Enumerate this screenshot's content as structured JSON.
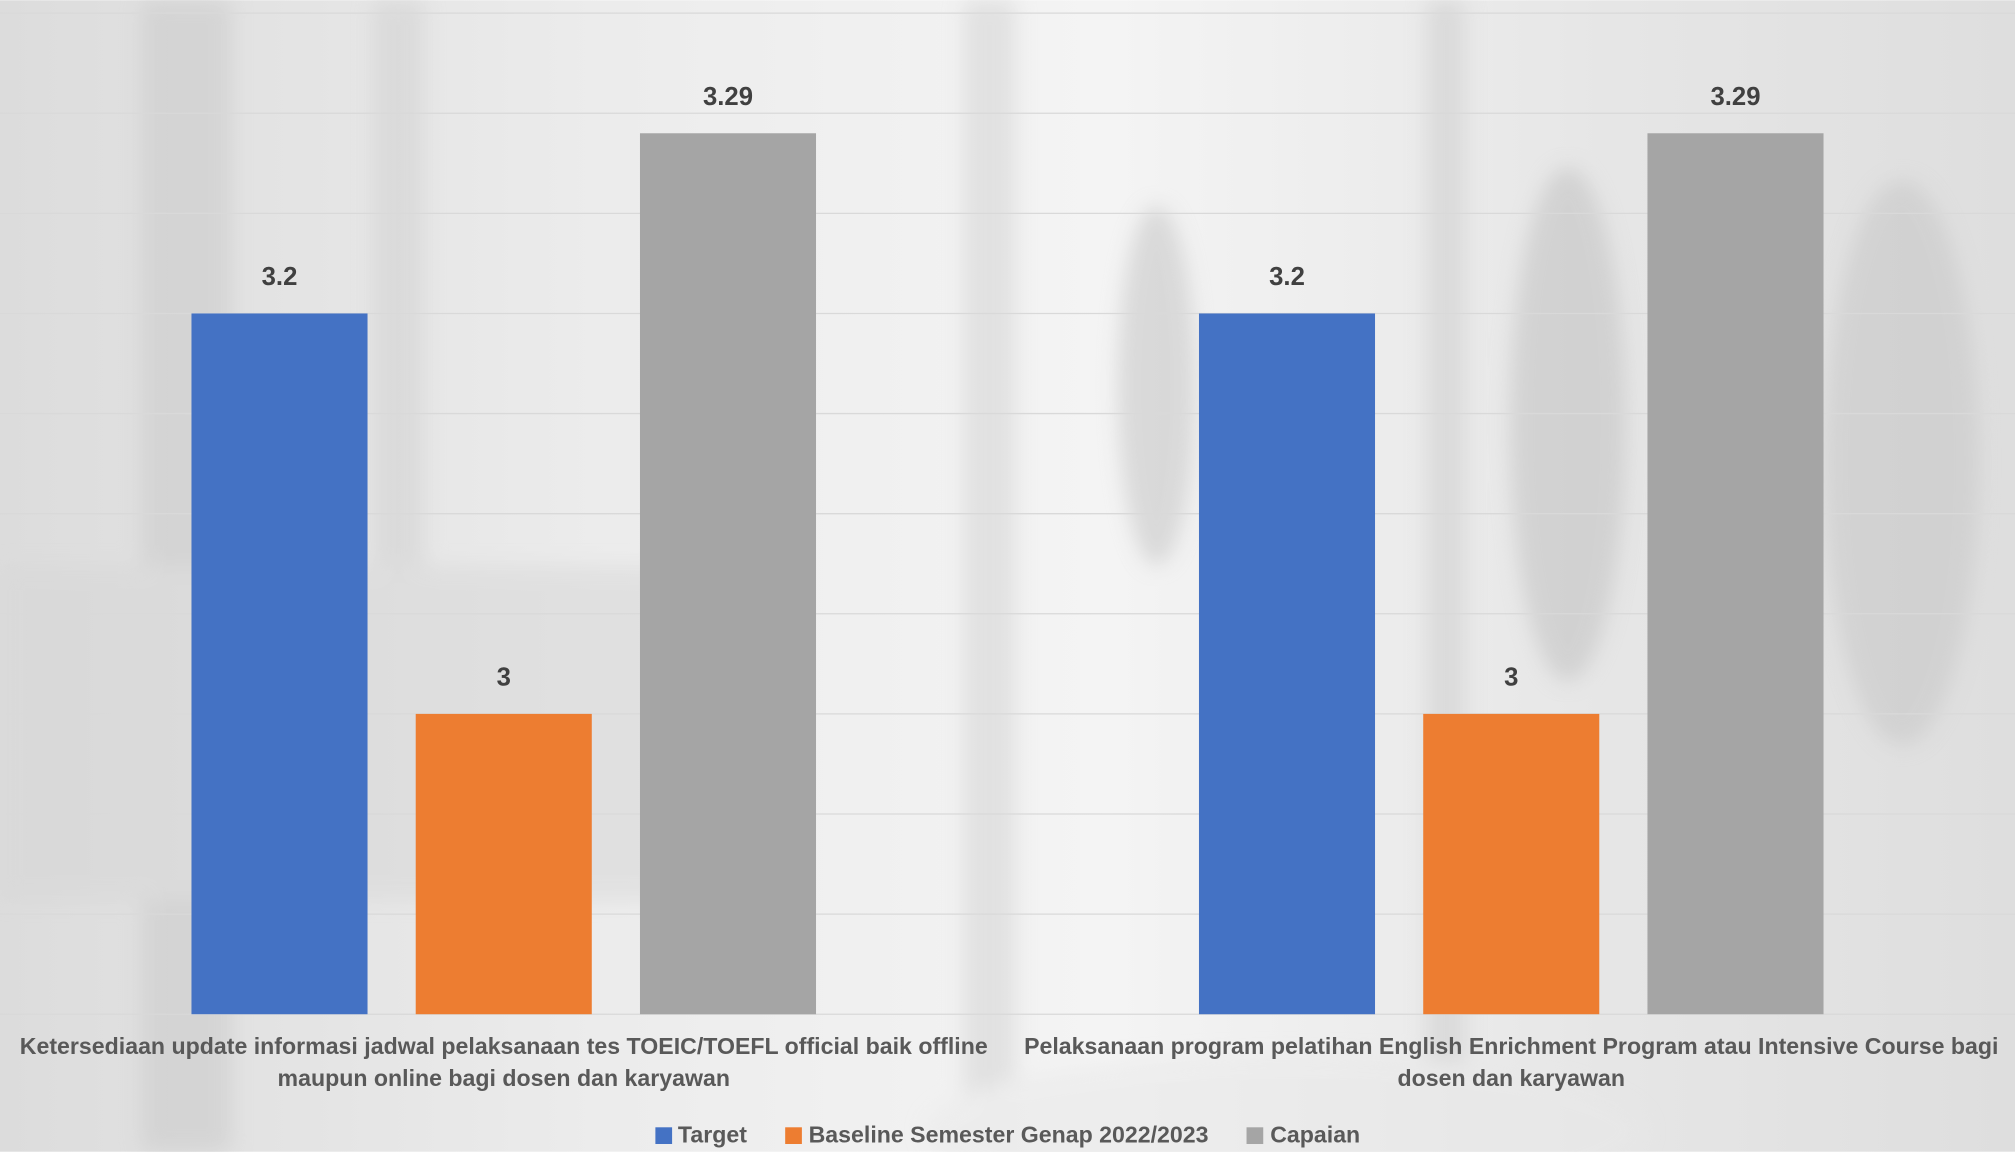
{
  "chart_data": {
    "type": "bar",
    "categories": [
      "Ketersediaan update informasi jadwal pelaksanaan tes TOEIC/TOEFL official baik offline maupun online bagi dosen dan karyawan",
      "Pelaksanaan program pelatihan English Enrichment Program atau Intensive Course bagi dosen dan karyawan"
    ],
    "series": [
      {
        "name": "Target",
        "color": "#4472c4",
        "values": [
          3.2,
          3.2
        ]
      },
      {
        "name": "Baseline Semester Genap 2022/2023",
        "color": "#ed7d31",
        "values": [
          3,
          3
        ]
      },
      {
        "name": "Capaian",
        "color": "#a5a5a5",
        "values": [
          3.29,
          3.29
        ]
      }
    ],
    "ylim": [
      2.85,
      3.35
    ],
    "yticks": [
      2.85,
      2.9,
      2.95,
      3,
      3.05,
      3.1,
      3.15,
      3.2,
      3.25,
      3.3,
      3.35
    ],
    "grid": true,
    "legend": "bottom"
  }
}
